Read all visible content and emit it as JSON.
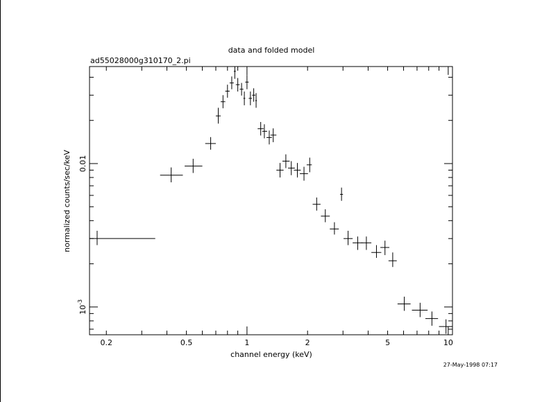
{
  "chart_data": {
    "type": "scatter",
    "title": "data and folded model",
    "subtitle": "ad55028000g310170_2.pi",
    "xlabel": "channel energy (keV)",
    "ylabel": "normalized counts/sec/keV",
    "xscale": "log",
    "yscale": "log",
    "xlim": [
      0.165,
      10.5
    ],
    "ylim": [
      0.00064,
      0.0475
    ],
    "xtick_labels": [
      {
        "value": 0.2,
        "label": "0.2"
      },
      {
        "value": 0.5,
        "label": "0.5"
      },
      {
        "value": 1,
        "label": "1"
      },
      {
        "value": 2,
        "label": "2"
      },
      {
        "value": 5,
        "label": "5"
      },
      {
        "value": 10,
        "label": "10"
      }
    ],
    "ytick_labels": [
      {
        "value": 0.01,
        "label": "0.01"
      },
      {
        "value": 0.001,
        "label": "10",
        "exponent": "-3"
      }
    ],
    "series": [
      {
        "style": "crosses",
        "points": [
          {
            "x": 0.18,
            "y": 0.003,
            "xlo": 0.165,
            "xhi": 0.35,
            "ylo": 0.0027,
            "yhi": 0.0034
          },
          {
            "x": 0.42,
            "y": 0.0083,
            "xlo": 0.37,
            "xhi": 0.48,
            "ylo": 0.0074,
            "yhi": 0.0094
          },
          {
            "x": 0.54,
            "y": 0.0096,
            "xlo": 0.49,
            "xhi": 0.6,
            "ylo": 0.0086,
            "yhi": 0.0108
          },
          {
            "x": 0.66,
            "y": 0.0138,
            "xlo": 0.62,
            "xhi": 0.7,
            "ylo": 0.0125,
            "yhi": 0.0153
          },
          {
            "x": 0.72,
            "y": 0.0215,
            "xlo": 0.7,
            "xhi": 0.74,
            "ylo": 0.019,
            "yhi": 0.0245
          },
          {
            "x": 0.76,
            "y": 0.027,
            "xlo": 0.74,
            "xhi": 0.78,
            "ylo": 0.0243,
            "yhi": 0.03
          },
          {
            "x": 0.8,
            "y": 0.032,
            "xlo": 0.78,
            "xhi": 0.82,
            "ylo": 0.0288,
            "yhi": 0.0355
          },
          {
            "x": 0.84,
            "y": 0.0365,
            "xlo": 0.82,
            "xhi": 0.86,
            "ylo": 0.033,
            "yhi": 0.0405
          },
          {
            "x": 0.87,
            "y": 0.044,
            "xlo": 0.86,
            "xhi": 0.88,
            "ylo": 0.039,
            "yhi": 0.048
          },
          {
            "x": 0.9,
            "y": 0.0355,
            "xlo": 0.88,
            "xhi": 0.92,
            "ylo": 0.0318,
            "yhi": 0.0395
          },
          {
            "x": 0.94,
            "y": 0.033,
            "xlo": 0.92,
            "xhi": 0.96,
            "ylo": 0.0298,
            "yhi": 0.0365
          },
          {
            "x": 0.97,
            "y": 0.0285,
            "xlo": 0.96,
            "xhi": 0.98,
            "ylo": 0.0255,
            "yhi": 0.0318
          },
          {
            "x": 1.0,
            "y": 0.037,
            "xlo": 0.98,
            "xhi": 1.02,
            "ylo": 0.033,
            "yhi": 0.0415
          },
          {
            "x": 1.04,
            "y": 0.0285,
            "xlo": 1.02,
            "xhi": 1.06,
            "ylo": 0.0255,
            "yhi": 0.0318
          },
          {
            "x": 1.08,
            "y": 0.03,
            "xlo": 1.06,
            "xhi": 1.1,
            "ylo": 0.027,
            "yhi": 0.0335
          },
          {
            "x": 1.11,
            "y": 0.0275,
            "xlo": 1.1,
            "xhi": 1.12,
            "ylo": 0.0245,
            "yhi": 0.031
          },
          {
            "x": 1.17,
            "y": 0.0175,
            "xlo": 1.13,
            "xhi": 1.21,
            "ylo": 0.0157,
            "yhi": 0.0195
          },
          {
            "x": 1.22,
            "y": 0.0168,
            "xlo": 1.19,
            "xhi": 1.26,
            "ylo": 0.015,
            "yhi": 0.0188
          },
          {
            "x": 1.29,
            "y": 0.0152,
            "xlo": 1.25,
            "xhi": 1.33,
            "ylo": 0.0136,
            "yhi": 0.017
          },
          {
            "x": 1.35,
            "y": 0.0158,
            "xlo": 1.31,
            "xhi": 1.4,
            "ylo": 0.0141,
            "yhi": 0.0176
          },
          {
            "x": 1.46,
            "y": 0.009,
            "xlo": 1.4,
            "xhi": 1.52,
            "ylo": 0.008,
            "yhi": 0.0101
          },
          {
            "x": 1.56,
            "y": 0.0104,
            "xlo": 1.5,
            "xhi": 1.63,
            "ylo": 0.0093,
            "yhi": 0.0116
          },
          {
            "x": 1.66,
            "y": 0.0093,
            "xlo": 1.6,
            "xhi": 1.73,
            "ylo": 0.0083,
            "yhi": 0.0104
          },
          {
            "x": 1.78,
            "y": 0.009,
            "xlo": 1.71,
            "xhi": 1.85,
            "ylo": 0.008,
            "yhi": 0.0101
          },
          {
            "x": 1.92,
            "y": 0.0085,
            "xlo": 1.83,
            "xhi": 2.01,
            "ylo": 0.0076,
            "yhi": 0.0095
          },
          {
            "x": 2.05,
            "y": 0.0098,
            "xlo": 1.98,
            "xhi": 2.1,
            "ylo": 0.0087,
            "yhi": 0.011
          },
          {
            "x": 2.22,
            "y": 0.0052,
            "xlo": 2.12,
            "xhi": 2.32,
            "ylo": 0.0047,
            "yhi": 0.0058
          },
          {
            "x": 2.45,
            "y": 0.0043,
            "xlo": 2.33,
            "xhi": 2.58,
            "ylo": 0.0039,
            "yhi": 0.0048
          },
          {
            "x": 2.72,
            "y": 0.0035,
            "xlo": 2.58,
            "xhi": 2.86,
            "ylo": 0.0032,
            "yhi": 0.0039
          },
          {
            "x": 2.95,
            "y": 0.0061,
            "xlo": 2.9,
            "xhi": 3.0,
            "ylo": 0.0055,
            "yhi": 0.0068
          },
          {
            "x": 3.18,
            "y": 0.003,
            "xlo": 3.02,
            "xhi": 3.35,
            "ylo": 0.0027,
            "yhi": 0.0034
          },
          {
            "x": 3.55,
            "y": 0.0028,
            "xlo": 3.35,
            "xhi": 3.75,
            "ylo": 0.0025,
            "yhi": 0.0031
          },
          {
            "x": 3.92,
            "y": 0.0028,
            "xlo": 3.7,
            "xhi": 4.15,
            "ylo": 0.0025,
            "yhi": 0.0031
          },
          {
            "x": 4.4,
            "y": 0.0024,
            "xlo": 4.15,
            "xhi": 4.65,
            "ylo": 0.0022,
            "yhi": 0.0027
          },
          {
            "x": 4.85,
            "y": 0.0026,
            "xlo": 4.6,
            "xhi": 5.1,
            "ylo": 0.0023,
            "yhi": 0.0029
          },
          {
            "x": 5.3,
            "y": 0.0021,
            "xlo": 5.05,
            "xhi": 5.55,
            "ylo": 0.0019,
            "yhi": 0.0024
          },
          {
            "x": 6.05,
            "y": 0.00105,
            "xlo": 5.6,
            "xhi": 6.5,
            "ylo": 0.00094,
            "yhi": 0.00118
          },
          {
            "x": 7.25,
            "y": 0.00095,
            "xlo": 6.6,
            "xhi": 7.9,
            "ylo": 0.00085,
            "yhi": 0.00107
          },
          {
            "x": 8.3,
            "y": 0.00083,
            "xlo": 7.7,
            "xhi": 8.9,
            "ylo": 0.00074,
            "yhi": 0.00093
          },
          {
            "x": 9.75,
            "y": 0.00073,
            "xlo": 9.0,
            "xhi": 10.5,
            "ylo": 0.00065,
            "yhi": 0.00082
          }
        ]
      }
    ],
    "grid": false,
    "legend": "none"
  },
  "footer": {
    "timestamp": "27-May-1998 07:17"
  }
}
